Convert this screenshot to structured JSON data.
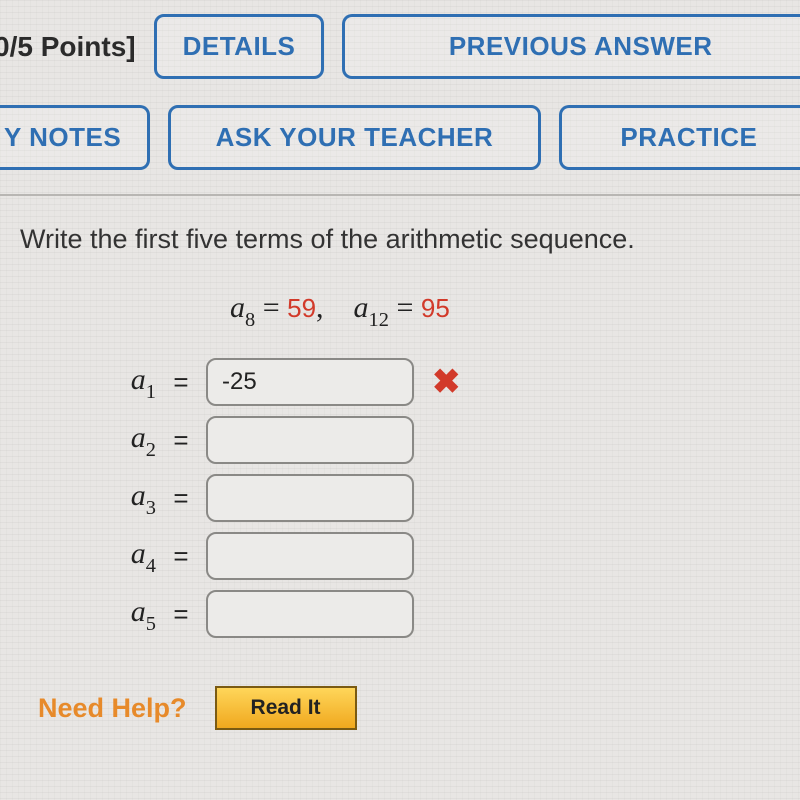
{
  "header": {
    "points_label": "0/5 Points]",
    "buttons_row1": {
      "details": "DETAILS",
      "previous_answers": "PREVIOUS ANSWER"
    },
    "buttons_row2": {
      "my_notes": "Y NOTES",
      "ask_teacher": "ASK YOUR TEACHER",
      "practice": "PRACTICE"
    }
  },
  "question": {
    "prompt": "Write the first five terms of the arithmetic sequence.",
    "given": {
      "term1_var": "a",
      "term1_sub": "8",
      "term1_val": "59",
      "term2_var": "a",
      "term2_sub": "12",
      "term2_val": "95"
    },
    "terms": [
      {
        "var": "a",
        "sub": "1",
        "value": "-25",
        "wrong": true
      },
      {
        "var": "a",
        "sub": "2",
        "value": "",
        "wrong": false
      },
      {
        "var": "a",
        "sub": "3",
        "value": "",
        "wrong": false
      },
      {
        "var": "a",
        "sub": "4",
        "value": "",
        "wrong": false
      },
      {
        "var": "a",
        "sub": "5",
        "value": "",
        "wrong": false
      }
    ]
  },
  "help": {
    "label": "Need Help?",
    "read_it": "Read It"
  },
  "colors": {
    "pill_border": "#2f6fb3",
    "wrong_red": "#d23a2a",
    "help_orange": "#e78a2a",
    "readit_bg_top": "#ffd65a",
    "readit_bg_bottom": "#f0a81e",
    "body_bg": "#e8e6e4"
  }
}
